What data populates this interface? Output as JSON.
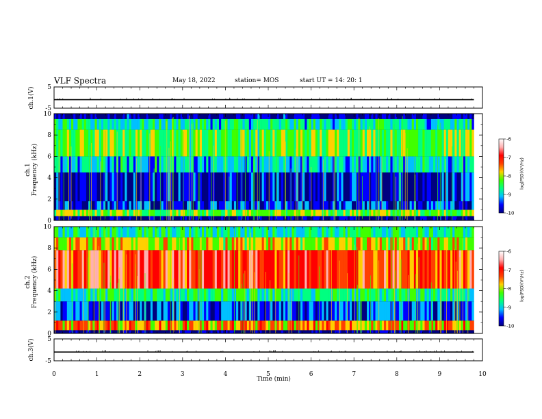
{
  "header": {
    "title": "VLF Spectra",
    "date": "May 18, 2022",
    "station": "station= MOS",
    "start": "start  UT =   14: 20: 1"
  },
  "xlabel": "Time  (min)",
  "colorbar": {
    "label": "log(PSD)(V²/Hz)",
    "ticks": [
      "-6",
      "-7",
      "-8",
      "-9",
      "-10"
    ],
    "range": [
      -10,
      -6
    ],
    "colors": [
      "#000080",
      "#0000ff",
      "#00c0ff",
      "#00ff80",
      "#40ff00",
      "#ffd000",
      "#ff4000",
      "#ff0000",
      "#ffb0b0",
      "#ffffff"
    ]
  },
  "chart_data": [
    {
      "type": "line",
      "panel": "ch.1(V)",
      "ylabel": "ch.1(V)",
      "ylim": [
        -5,
        5
      ],
      "yticks": [
        "5",
        "-5"
      ],
      "xlim": [
        0,
        10
      ],
      "series": [
        {
          "x": [
            0,
            9.8
          ],
          "values": [
            -1,
            -1
          ]
        }
      ]
    },
    {
      "type": "heatmap",
      "panel": "ch.1 spectrogram",
      "ylabel": "ch.1\nFrequency  (kHz)",
      "ylim": [
        0,
        10
      ],
      "yticks": [
        "0",
        "2",
        "4",
        "6",
        "8",
        "10"
      ],
      "xlim": [
        0,
        10
      ],
      "data_extent_x": [
        0,
        9.8
      ],
      "bands": [
        {
          "f": [
            0,
            0.4
          ],
          "level": -10
        },
        {
          "f": [
            0.4,
            1.0
          ],
          "level": -8.2
        },
        {
          "f": [
            1.0,
            1.8
          ],
          "level": -9.6
        },
        {
          "f": [
            1.8,
            4.5
          ],
          "level": -9.7
        },
        {
          "f": [
            4.5,
            6.0
          ],
          "level": -9.0
        },
        {
          "f": [
            6.0,
            8.5
          ],
          "level": -8.3
        },
        {
          "f": [
            8.5,
            9.5
          ],
          "level": -8.8
        },
        {
          "f": [
            9.5,
            10
          ],
          "level": -9.9
        }
      ]
    },
    {
      "type": "heatmap",
      "panel": "ch.2 spectrogram",
      "ylabel": "ch.2\nFrequency  (kHz)",
      "ylim": [
        0,
        10
      ],
      "yticks": [
        "0",
        "2",
        "4",
        "6",
        "8",
        "10"
      ],
      "xlim": [
        0,
        10
      ],
      "data_extent_x": [
        0,
        9.8
      ],
      "bands": [
        {
          "f": [
            0,
            0.3
          ],
          "level": -10
        },
        {
          "f": [
            0.3,
            1.2
          ],
          "level": -7.6
        },
        {
          "f": [
            1.2,
            3.0
          ],
          "level": -9.5
        },
        {
          "f": [
            3.0,
            4.2
          ],
          "level": -8.7
        },
        {
          "f": [
            4.2,
            7.8
          ],
          "level": -7.1
        },
        {
          "f": [
            7.8,
            9.0
          ],
          "level": -7.9
        },
        {
          "f": [
            9.0,
            10
          ],
          "level": -8.7
        }
      ]
    },
    {
      "type": "line",
      "panel": "ch.3(V)",
      "ylabel": "ch.3(V)",
      "ylim": [
        -5,
        5
      ],
      "yticks": [
        "5",
        "-5"
      ],
      "xlim": [
        0,
        10
      ],
      "xticks": [
        "0",
        "1",
        "2",
        "3",
        "4",
        "5",
        "6",
        "7",
        "8",
        "9",
        "10"
      ],
      "series": [
        {
          "x": [
            0,
            9.8
          ],
          "values": [
            -1,
            -1
          ]
        }
      ]
    }
  ]
}
